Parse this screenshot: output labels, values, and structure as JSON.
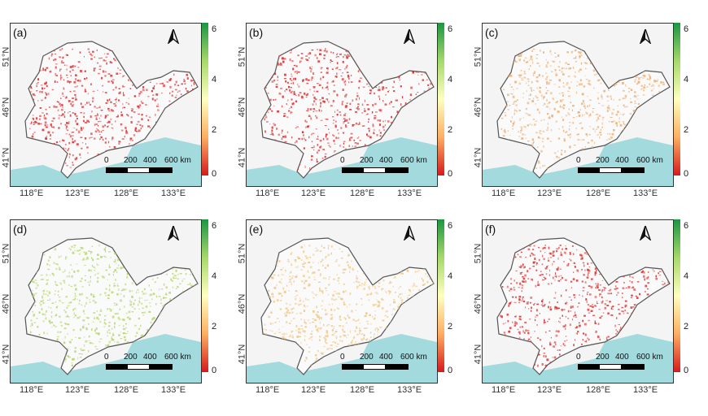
{
  "panels": [
    {
      "label": "(a)",
      "palette": "red"
    },
    {
      "label": "(b)",
      "palette": "red"
    },
    {
      "label": "(c)",
      "palette": "orange"
    },
    {
      "label": "(d)",
      "palette": "green"
    },
    {
      "label": "(e)",
      "palette": "lightorange"
    },
    {
      "label": "(f)",
      "palette": "red"
    }
  ],
  "lat_labels": [
    "51°N",
    "46°N",
    "41°N"
  ],
  "lon_labels": [
    "118°E",
    "123°E",
    "128°E",
    "133°E"
  ],
  "colorbar_ticks": [
    "6",
    "4",
    "2",
    "0"
  ],
  "scalebar_labels": [
    "0",
    "200",
    "400",
    "600 km"
  ],
  "colors": {
    "red": "#e23a3a",
    "orange": "#f0b37a",
    "green": "#b9d874",
    "lightorange": "#f2c98a",
    "sea": "#8fd3d8",
    "border": "#555555"
  },
  "icons": {
    "north_arrow": "north-arrow-icon"
  }
}
